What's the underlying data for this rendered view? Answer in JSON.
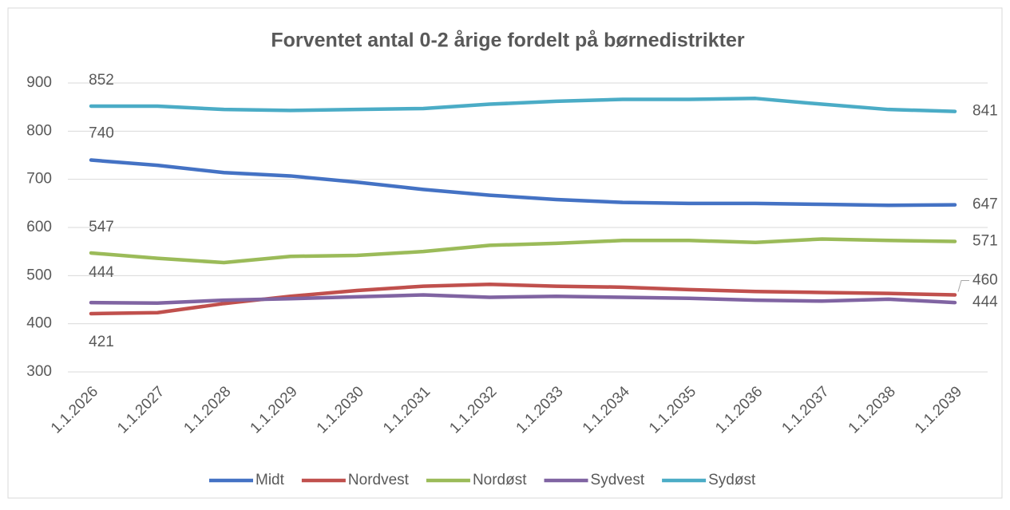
{
  "chart_data": {
    "type": "line",
    "title": "Forventet antal 0-2 årige fordelt på børnedistrikter",
    "categories": [
      "1.1.2026",
      "1.1.2027",
      "1.1.2028",
      "1.1.2029",
      "1.1.2030",
      "1.1.2031",
      "1.1.2032",
      "1.1.2033",
      "1.1.2034",
      "1.1.2035",
      "1.1.2036",
      "1.1.2037",
      "1.1.2038",
      "1.1.2039"
    ],
    "series": [
      {
        "name": "Midt",
        "color": "#4472c4",
        "values": [
          740,
          729,
          714,
          707,
          694,
          679,
          667,
          658,
          652,
          650,
          650,
          648,
          646,
          647
        ]
      },
      {
        "name": "Nordvest",
        "color": "#c0504d",
        "values": [
          421,
          423,
          442,
          457,
          469,
          478,
          482,
          478,
          476,
          471,
          467,
          465,
          463,
          460
        ]
      },
      {
        "name": "Nordøst",
        "color": "#9bbb59",
        "values": [
          547,
          536,
          527,
          540,
          542,
          550,
          563,
          567,
          573,
          573,
          569,
          576,
          573,
          571
        ]
      },
      {
        "name": "Sydvest",
        "color": "#8064a2",
        "values": [
          444,
          443,
          449,
          452,
          456,
          460,
          455,
          457,
          455,
          453,
          449,
          447,
          451,
          444
        ]
      },
      {
        "name": "Sydøst",
        "color": "#4bacc6",
        "values": [
          852,
          852,
          845,
          843,
          845,
          847,
          856,
          862,
          866,
          866,
          868,
          856,
          845,
          841
        ]
      }
    ],
    "ylim": [
      300,
      900
    ],
    "yticks": [
      300,
      400,
      500,
      600,
      700,
      800,
      900
    ],
    "grid": true,
    "legend": "bottom"
  }
}
